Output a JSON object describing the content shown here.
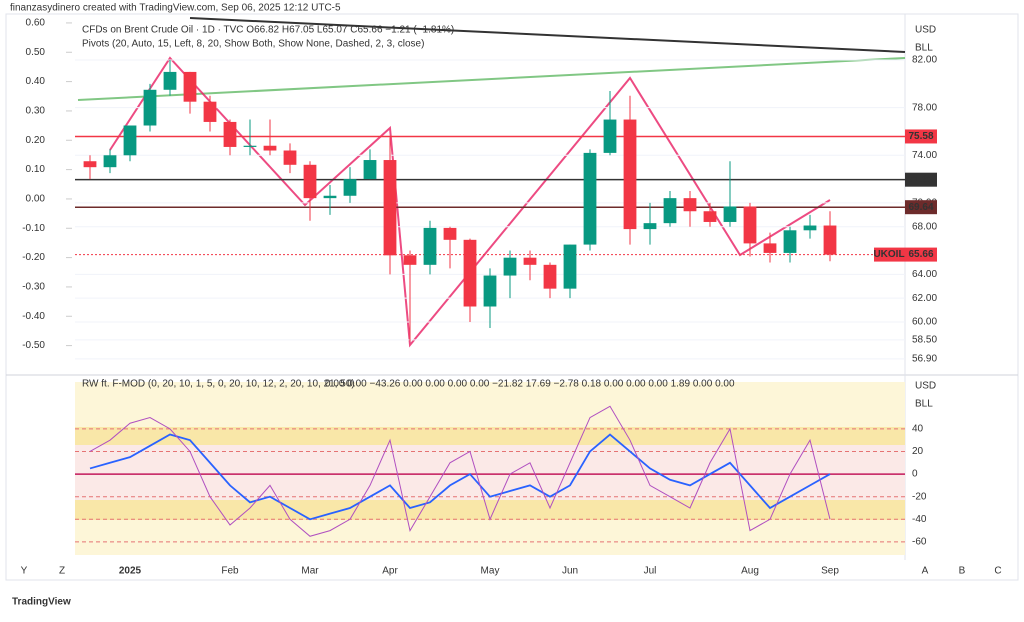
{
  "header": "finanzasydinero created with TradingView.com, Sep 06, 2025 12:12 UTC-5",
  "footer": "TradingView",
  "axis_letters": [
    "Y",
    "Z",
    "A",
    "B",
    "C"
  ],
  "chart_data": [
    {
      "type": "candlestick",
      "title": "CFDs on Brent Crude Oil · 1D · TVC  O66.82 H67.05 L65.07 C65.66 −1.21 (−1.81%)",
      "subtitle": "Pivots (20, Auto, 15, Left, 8, 20, Show Both, Show None, Dashed, 2, 3, close)",
      "currency": "USD",
      "unit": "BLL",
      "categories": [
        null,
        null,
        "2025",
        null,
        null,
        null,
        null,
        "Feb",
        null,
        null,
        null,
        "Mar",
        null,
        null,
        null,
        "Apr",
        null,
        null,
        null,
        null,
        "May",
        null,
        null,
        null,
        "Jun",
        null,
        null,
        null,
        "Jul",
        null,
        null,
        null,
        null,
        "Aug",
        null,
        null,
        null,
        "Sep"
      ],
      "open": [
        73.5,
        73,
        74,
        76.5,
        79.5,
        81,
        78.5,
        76.8,
        74.7,
        74.8,
        74.4,
        73.2,
        70.4,
        70.6,
        72,
        73.6,
        65.6,
        64.8,
        67.9,
        66.9,
        61.3,
        63.9,
        65.4,
        64.8,
        62.8,
        66.5,
        74.2,
        77,
        67.8,
        68.3,
        70.4,
        69.3,
        68.4,
        69.7,
        66.6,
        65.8,
        67.7,
        68.1
      ],
      "high": [
        74,
        74.5,
        76.5,
        80,
        82,
        81,
        79,
        77,
        77,
        77,
        75,
        73.5,
        71.5,
        73,
        74.5,
        75.5,
        66,
        68.5,
        68,
        67,
        64.5,
        66,
        66,
        65,
        66.5,
        74.5,
        79.4,
        79,
        70,
        71,
        71,
        70,
        73.5,
        70,
        67.5,
        68,
        69,
        69.3
      ],
      "low": [
        72,
        72.5,
        73.5,
        76,
        79,
        77.5,
        76,
        74,
        74,
        74,
        72.5,
        68.5,
        69,
        70,
        72,
        64,
        58.4,
        64,
        64.5,
        60,
        59.5,
        62,
        63.5,
        62,
        62,
        66,
        74,
        66.5,
        66.5,
        68,
        68,
        68,
        68,
        65.5,
        65,
        65,
        67,
        65.1
      ],
      "close": [
        73,
        74,
        76.5,
        79.5,
        81,
        78.5,
        76.8,
        74.7,
        74.8,
        74.4,
        73.2,
        70.4,
        70.6,
        72,
        73.6,
        65.6,
        64.8,
        67.9,
        66.9,
        61.3,
        63.9,
        65.4,
        64.8,
        62.8,
        66.5,
        74.2,
        77,
        67.8,
        68.3,
        70.4,
        69.3,
        68.4,
        69.7,
        66.6,
        65.8,
        67.7,
        68.1,
        65.66
      ],
      "up_color": "#089981",
      "down_color": "#f23645",
      "ylim": [
        55.8,
        85.36
      ],
      "yticks": [
        {
          "value": 82,
          "label": "82.00"
        },
        {
          "value": 78,
          "label": "78.00"
        },
        {
          "value": 74,
          "label": "74.00"
        },
        {
          "value": 70,
          "label": "70.00"
        },
        {
          "value": 68,
          "label": "68.00"
        },
        {
          "value": 64,
          "label": "64.00"
        },
        {
          "value": 62,
          "label": "62.00"
        },
        {
          "value": 60,
          "label": "60.00"
        },
        {
          "value": 58.5,
          "label": "58.50"
        },
        {
          "value": 56.9,
          "label": "56.90"
        }
      ],
      "y2lim": [
        -0.59,
        0.61
      ],
      "y2ticks": [
        {
          "value": 0.6,
          "label": "0.60"
        },
        {
          "value": 0.5,
          "label": "0.50"
        },
        {
          "value": 0.4,
          "label": "0.40"
        },
        {
          "value": 0.3,
          "label": "0.30"
        },
        {
          "value": 0.2,
          "label": "0.20"
        },
        {
          "value": 0.1,
          "label": "0.10"
        },
        {
          "value": 0,
          "label": "0.00"
        },
        {
          "value": -0.1,
          "label": "-0.10"
        },
        {
          "value": -0.2,
          "label": "-0.20"
        },
        {
          "value": -0.3,
          "label": "-0.30"
        },
        {
          "value": -0.4,
          "label": "-0.40"
        },
        {
          "value": -0.5,
          "label": "-0.50"
        }
      ],
      "levels": [
        {
          "value": 75.58,
          "color": "#f23645"
        },
        {
          "value": 71.95,
          "color": "#333333"
        },
        {
          "value": 69.64,
          "color": "#6d2b2b"
        },
        {
          "value": 65.66,
          "color": "#f23645",
          "name": "UKOIL"
        }
      ]
    },
    {
      "type": "line",
      "title": "RW ft. F-MOD (0, 20, 10, 1, 5, 0, 20, 10, 12, 2, 20, 10, 21, 50)",
      "subtitle": "0.00  0.00  −43.26  0.00  0.00  0.00  0.00  −21.82  17.69  −2.78  0.18  0.00  0.00  0.00  1.89  0.00  0.00",
      "currency": "USD",
      "unit": "BLL",
      "series": [
        {
          "color": "#2962ff",
          "values": [
            5,
            10,
            15,
            25,
            35,
            30,
            10,
            -10,
            -25,
            -20,
            -30,
            -40,
            -35,
            -30,
            -20,
            -10,
            -30,
            -25,
            -10,
            0,
            -20,
            -15,
            -10,
            -20,
            -10,
            20,
            35,
            20,
            5,
            -5,
            -10,
            0,
            10,
            -10,
            -30,
            -20,
            -10,
            0
          ]
        },
        {
          "color": "#b04fc0",
          "values": [
            20,
            30,
            45,
            50,
            40,
            20,
            -20,
            -45,
            -30,
            -10,
            -40,
            -55,
            -50,
            -40,
            -10,
            30,
            -50,
            -20,
            10,
            20,
            -40,
            0,
            10,
            -30,
            10,
            50,
            60,
            30,
            -10,
            -20,
            -30,
            10,
            40,
            -50,
            -40,
            0,
            30,
            -40
          ]
        }
      ],
      "ylim": [
        -76,
        85
      ],
      "yticks": [
        40,
        20,
        0,
        -20,
        -40,
        -60
      ]
    }
  ]
}
